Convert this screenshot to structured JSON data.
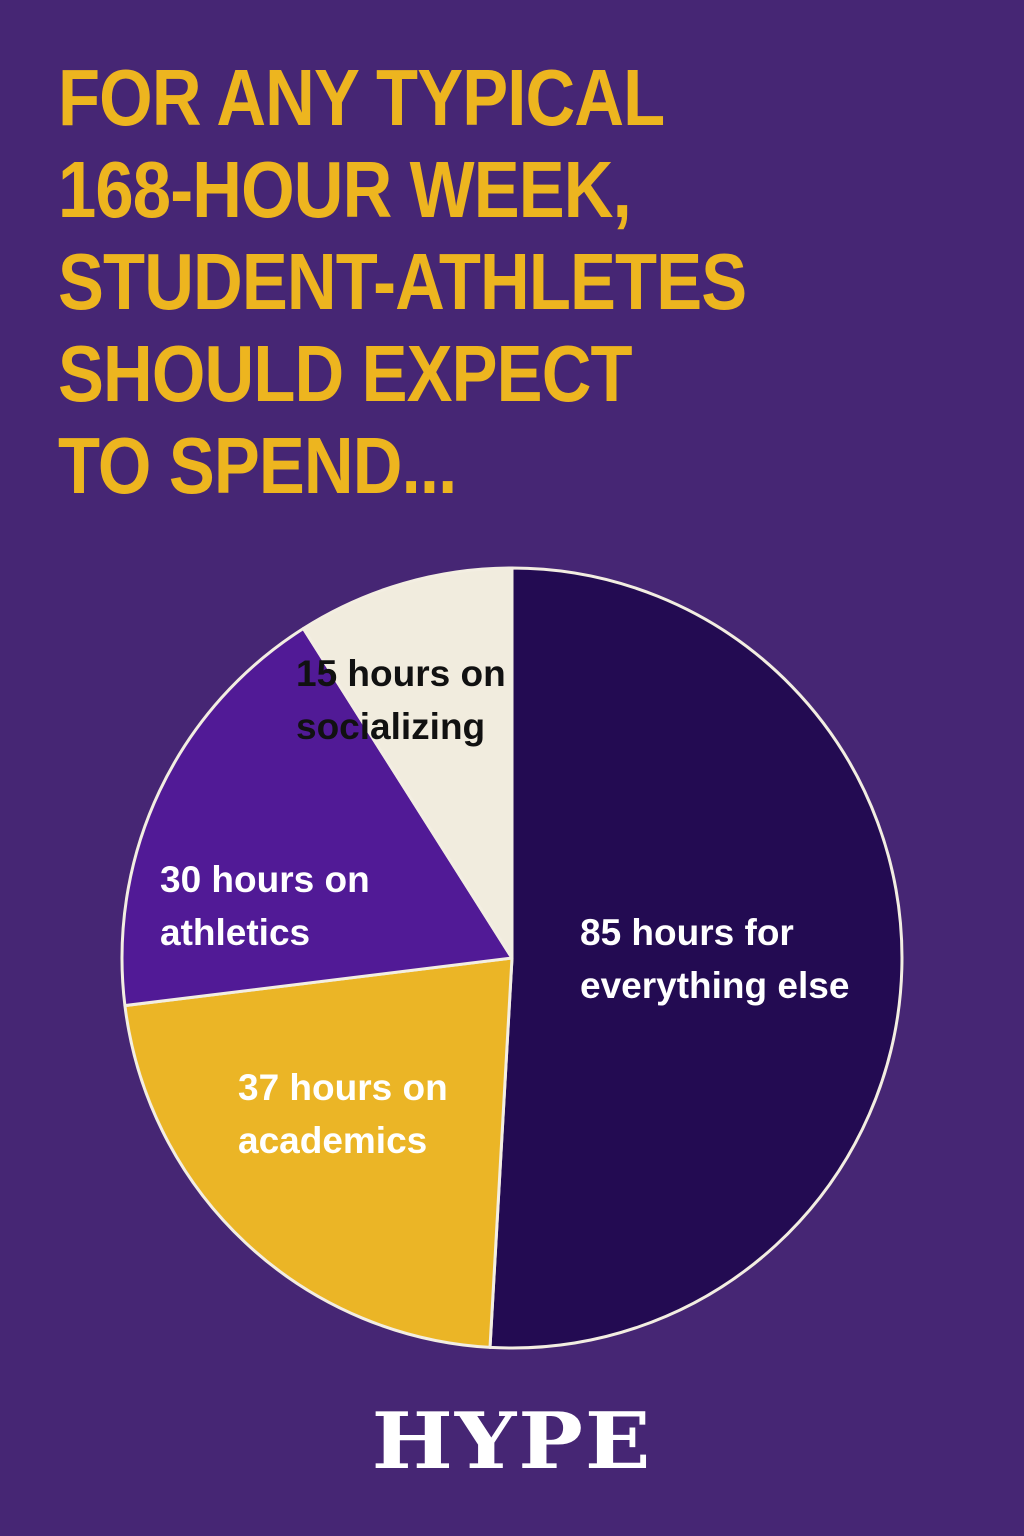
{
  "title_lines": [
    "FOR ANY TYPICAL",
    "168-HOUR WEEK,",
    "STUDENT-ATHLETES",
    "SHOULD EXPECT",
    "TO SPEND..."
  ],
  "brand": "HYPE",
  "colors": {
    "background": "#462674",
    "title": "#edb51f",
    "pie_outline": "#f3eee2"
  },
  "chart_data": {
    "type": "pie",
    "total": 168,
    "slices": [
      {
        "label": "85 hours for everything else",
        "lines": [
          "85 hours for",
          "everything else"
        ],
        "value": 85,
        "color": "#230b52",
        "text_color": "#ffffff"
      },
      {
        "label": "37 hours on academics",
        "lines": [
          "37 hours on",
          "academics"
        ],
        "value": 37,
        "color": "#ebb526",
        "text_color": "#ffffff"
      },
      {
        "label": "30 hours on athletics",
        "lines": [
          "30 hours on",
          "athletics"
        ],
        "value": 30,
        "color": "#511a96",
        "text_color": "#ffffff"
      },
      {
        "label": "15 hours on socializing",
        "lines": [
          "15 hours on",
          "socializing"
        ],
        "value": 15,
        "color": "#f1ecde",
        "text_color": "#111111"
      }
    ],
    "start_position": "12 o'clock",
    "direction": "clockwise",
    "legend": "none"
  }
}
